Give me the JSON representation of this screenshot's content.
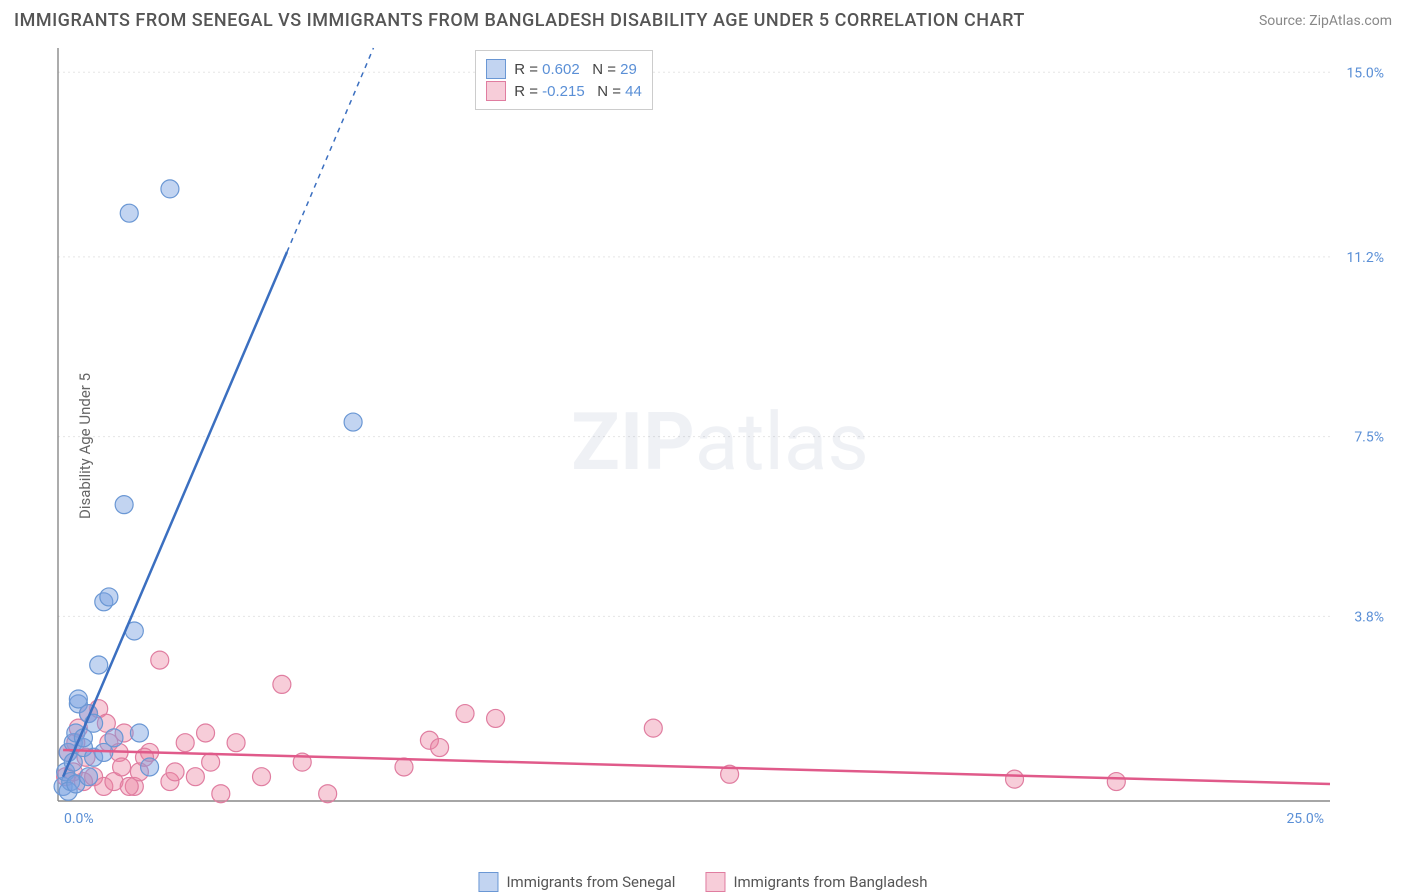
{
  "title": "IMMIGRANTS FROM SENEGAL VS IMMIGRANTS FROM BANGLADESH DISABILITY AGE UNDER 5 CORRELATION CHART",
  "source": "Source: ZipAtlas.com",
  "y_axis_label": "Disability Age Under 5",
  "watermark_a": "ZIP",
  "watermark_b": "atlas",
  "chart": {
    "type": "scatter",
    "background_color": "#ffffff",
    "grid_color": "#e5e5e5",
    "axis_color": "#888888",
    "xlim": [
      0,
      25
    ],
    "ylim": [
      0,
      15.5
    ],
    "x_ticks": [
      {
        "value": 0,
        "label": "0.0%"
      },
      {
        "value": 25,
        "label": "25.0%"
      }
    ],
    "y_ticks": [
      {
        "value": 3.8,
        "label": "3.8%"
      },
      {
        "value": 7.5,
        "label": "7.5%"
      },
      {
        "value": 11.2,
        "label": "11.2%"
      },
      {
        "value": 15.0,
        "label": "15.0%"
      }
    ],
    "tick_label_color": "#5a8fd6",
    "tick_label_fontsize": 14,
    "marker_radius": 9,
    "marker_stroke_width": 1.2,
    "series": {
      "senegal": {
        "label": "Immigrants from Senegal",
        "color_fill": "rgba(120,160,225,0.45)",
        "color_stroke": "#6a97d4",
        "R": "0.602",
        "N": "29",
        "trend": {
          "x1": 0.1,
          "y1": 0.5,
          "x2": 6.2,
          "y2": 15.5,
          "dashed_after_x": 4.5,
          "dashed_after_y": 11.3
        },
        "trend_color": "#3b6fc0",
        "trend_width": 2.5,
        "points": [
          [
            0.1,
            0.3
          ],
          [
            0.15,
            0.6
          ],
          [
            0.2,
            1.0
          ],
          [
            0.25,
            0.4
          ],
          [
            0.3,
            1.2
          ],
          [
            0.3,
            0.8
          ],
          [
            0.35,
            1.4
          ],
          [
            0.4,
            2.0
          ],
          [
            0.4,
            2.1
          ],
          [
            0.5,
            1.1
          ],
          [
            0.5,
            1.3
          ],
          [
            0.6,
            1.8
          ],
          [
            0.7,
            0.9
          ],
          [
            0.7,
            1.6
          ],
          [
            0.8,
            2.8
          ],
          [
            0.9,
            1.0
          ],
          [
            0.9,
            4.1
          ],
          [
            1.0,
            4.2
          ],
          [
            1.1,
            1.3
          ],
          [
            1.3,
            6.1
          ],
          [
            1.5,
            3.5
          ],
          [
            1.6,
            1.4
          ],
          [
            1.8,
            0.7
          ],
          [
            2.2,
            12.6
          ],
          [
            1.4,
            12.1
          ],
          [
            5.8,
            7.8
          ],
          [
            0.2,
            0.2
          ],
          [
            0.35,
            0.35
          ],
          [
            0.6,
            0.5
          ]
        ]
      },
      "bangladesh": {
        "label": "Immigrants from Bangladesh",
        "color_fill": "rgba(235,130,160,0.40)",
        "color_stroke": "#e07da0",
        "R": "-0.215",
        "N": "44",
        "trend": {
          "x1": 0.1,
          "y1": 1.05,
          "x2": 25.0,
          "y2": 0.35
        },
        "trend_color": "#e05a8a",
        "trend_width": 2.5,
        "points": [
          [
            0.2,
            1.0
          ],
          [
            0.3,
            0.6
          ],
          [
            0.4,
            1.5
          ],
          [
            0.5,
            0.4
          ],
          [
            0.6,
            1.8
          ],
          [
            0.7,
            0.5
          ],
          [
            0.8,
            1.9
          ],
          [
            0.9,
            0.3
          ],
          [
            1.0,
            1.2
          ],
          [
            1.1,
            0.4
          ],
          [
            1.2,
            1.0
          ],
          [
            1.3,
            1.4
          ],
          [
            1.5,
            0.3
          ],
          [
            1.6,
            0.6
          ],
          [
            1.8,
            1.0
          ],
          [
            2.0,
            2.9
          ],
          [
            2.2,
            0.4
          ],
          [
            2.5,
            1.2
          ],
          [
            2.7,
            0.5
          ],
          [
            3.0,
            0.8
          ],
          [
            3.2,
            0.15
          ],
          [
            3.5,
            1.2
          ],
          [
            4.0,
            0.5
          ],
          [
            4.4,
            2.4
          ],
          [
            4.8,
            0.8
          ],
          [
            5.3,
            0.15
          ],
          [
            6.8,
            0.7
          ],
          [
            7.3,
            1.25
          ],
          [
            7.5,
            1.1
          ],
          [
            8.0,
            1.8
          ],
          [
            8.6,
            1.7
          ],
          [
            11.7,
            1.5
          ],
          [
            13.2,
            0.55
          ],
          [
            18.8,
            0.45
          ],
          [
            20.8,
            0.4
          ],
          [
            1.4,
            0.3
          ],
          [
            1.7,
            0.9
          ],
          [
            2.3,
            0.6
          ],
          [
            2.9,
            1.4
          ],
          [
            0.35,
            1.2
          ],
          [
            0.55,
            0.9
          ],
          [
            0.95,
            1.6
          ],
          [
            1.25,
            0.7
          ],
          [
            0.15,
            0.5
          ]
        ]
      }
    },
    "stats_legend": {
      "R_label": "R",
      "N_label": "N",
      "eq": "="
    }
  }
}
